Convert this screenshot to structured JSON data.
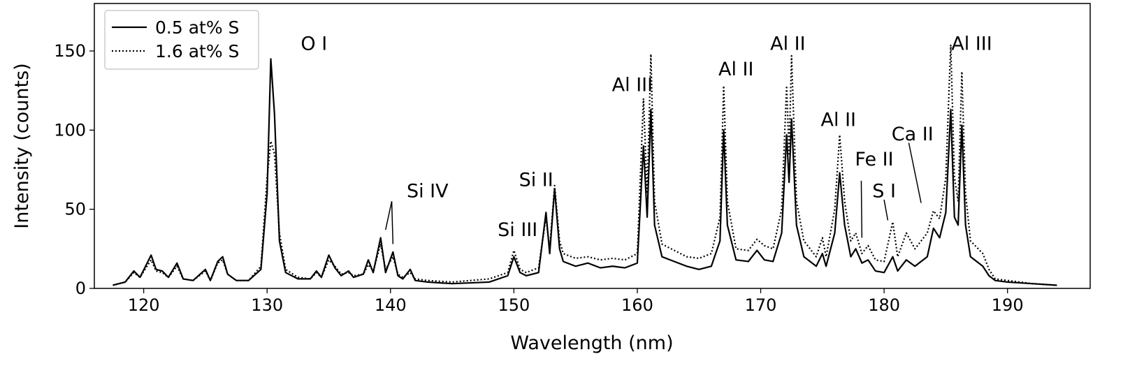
{
  "chart_data": {
    "type": "line",
    "xlabel": "Wavelength (nm)",
    "ylabel": "Intensity (counts)",
    "xlim": [
      116,
      196.7
    ],
    "ylim": [
      0,
      180
    ],
    "xticks": [
      120,
      130,
      140,
      150,
      160,
      170,
      180,
      190
    ],
    "yticks": [
      0,
      50,
      100,
      150
    ],
    "legend": "upper left",
    "x": [
      117.5,
      118.5,
      119.2,
      119.7,
      120.6,
      121,
      121.5,
      122,
      122.7,
      123.2,
      124,
      125,
      125.4,
      126,
      126.4,
      126.8,
      127.5,
      128.5,
      129.5,
      130,
      130.3,
      130.6,
      131,
      131.5,
      132.5,
      133.5,
      134,
      134.4,
      135,
      135.5,
      136,
      136.6,
      137,
      137.8,
      138.2,
      138.6,
      139.2,
      139.6,
      140.2,
      140.6,
      141,
      141.6,
      142,
      143,
      145,
      148,
      149.5,
      150,
      150.5,
      151,
      152,
      152.6,
      152.9,
      153.3,
      153.7,
      154,
      155,
      156,
      157,
      158,
      159,
      160,
      160.5,
      160.8,
      161.1,
      161.4,
      162,
      163,
      164,
      165,
      166,
      166.7,
      167,
      167.3,
      168,
      169,
      169.7,
      170.3,
      171,
      171.7,
      172.1,
      172.3,
      172.5,
      172.9,
      173.5,
      174.5,
      175,
      175.3,
      176,
      176.4,
      176.8,
      177.3,
      177.7,
      178.2,
      178.7,
      179.3,
      180,
      180.7,
      181.1,
      181.8,
      182.5,
      183.5,
      184,
      184.5,
      185,
      185.4,
      185.7,
      186,
      186.3,
      186.6,
      187,
      188,
      188.5,
      189,
      190,
      192,
      194
    ],
    "series": [
      {
        "name": "0.5 at% S",
        "color": "#000000",
        "dash": "solid",
        "values": [
          2,
          4,
          11,
          7,
          21,
          12,
          11,
          7,
          16,
          6,
          5,
          12,
          5,
          17,
          20,
          9,
          5,
          5,
          12,
          60,
          145,
          110,
          30,
          10,
          6,
          6,
          11,
          7,
          21,
          13,
          8,
          11,
          7,
          9,
          18,
          10,
          32,
          10,
          23,
          8,
          6,
          12,
          5,
          4,
          3,
          4,
          8,
          20,
          10,
          8,
          10,
          48,
          22,
          63,
          25,
          17,
          14,
          16,
          13,
          14,
          13,
          16,
          90,
          45,
          113,
          40,
          20,
          17,
          14,
          12,
          14,
          30,
          100,
          40,
          18,
          17,
          24,
          18,
          17,
          35,
          97,
          67,
          107,
          40,
          20,
          14,
          22,
          14,
          35,
          73,
          40,
          20,
          25,
          16,
          18,
          11,
          10,
          20,
          11,
          18,
          14,
          20,
          38,
          32,
          48,
          113,
          45,
          40,
          103,
          40,
          20,
          14,
          8,
          5,
          4,
          3,
          2
        ]
      },
      {
        "name": "1.6 at% S",
        "color": "#000000",
        "dash": "dotted",
        "values": [
          2,
          4,
          10,
          7,
          18,
          11,
          10,
          7,
          14,
          6,
          5,
          11,
          5,
          16,
          18,
          9,
          5,
          5,
          14,
          70,
          93,
          85,
          35,
          12,
          7,
          6,
          10,
          7,
          18,
          14,
          9,
          10,
          8,
          9,
          15,
          11,
          28,
          12,
          20,
          9,
          7,
          10,
          6,
          5,
          4,
          6,
          10,
          24,
          12,
          10,
          13,
          45,
          25,
          65,
          30,
          22,
          19,
          20,
          18,
          19,
          18,
          22,
          120,
          60,
          148,
          55,
          28,
          24,
          20,
          19,
          22,
          45,
          128,
          55,
          25,
          24,
          31,
          27,
          25,
          50,
          128,
          85,
          147,
          55,
          30,
          20,
          32,
          20,
          50,
          97,
          55,
          30,
          35,
          22,
          27,
          18,
          17,
          42,
          20,
          35,
          25,
          35,
          49,
          44,
          70,
          154,
          70,
          55,
          137,
          60,
          30,
          22,
          12,
          6,
          5,
          3,
          2
        ]
      }
    ],
    "annotations": [
      {
        "text": "O I",
        "x": 133.8,
        "y": 155
      },
      {
        "text": "Si IV",
        "x": 143.0,
        "y": 62,
        "arrows": [
          [
            140.1,
            55,
            139.6,
            37
          ],
          [
            140.1,
            55,
            140.2,
            28
          ]
        ]
      },
      {
        "text": "Si III",
        "x": 150.3,
        "y": 37.5
      },
      {
        "text": "Si II",
        "x": 151.8,
        "y": 69
      },
      {
        "text": "Al III",
        "x": 159.6,
        "y": 129
      },
      {
        "text": "Al II",
        "x": 168.0,
        "y": 139
      },
      {
        "text": "Al II",
        "x": 172.2,
        "y": 155
      },
      {
        "text": "Al II",
        "x": 176.3,
        "y": 107
      },
      {
        "text": "Fe II",
        "x": 179.2,
        "y": 82,
        "arrows": [
          [
            178.15,
            68,
            178.2,
            32
          ]
        ]
      },
      {
        "text": "S I",
        "x": 180.0,
        "y": 62,
        "arrows": [
          [
            180.0,
            56,
            180.3,
            43
          ]
        ]
      },
      {
        "text": "Ca II",
        "x": 182.3,
        "y": 98,
        "arrows": [
          [
            182.0,
            92,
            183.0,
            54
          ]
        ]
      },
      {
        "text": "Al III",
        "x": 187.1,
        "y": 155
      }
    ]
  }
}
